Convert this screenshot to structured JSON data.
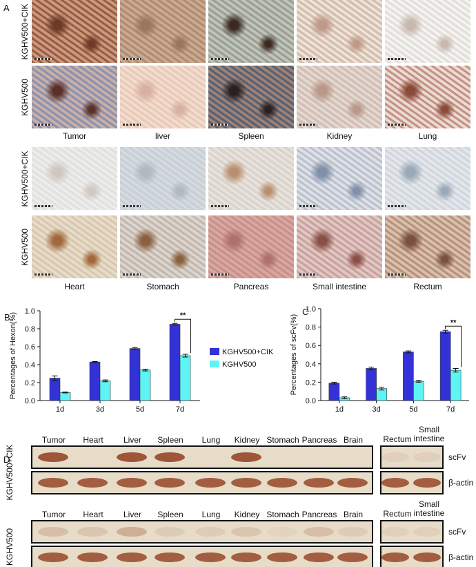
{
  "panel_labels": [
    "A",
    "B",
    "C",
    "D"
  ],
  "panel_a": {
    "groups": [
      {
        "rows": [
          "KGHV500+CIK",
          "KGHV500"
        ],
        "tissues": [
          "Tumor",
          "liver",
          "Spleen",
          "Kidney",
          "Lung"
        ]
      },
      {
        "rows": [
          "KGHV500+CIK",
          "KGHV500"
        ],
        "tissues": [
          "Heart",
          "Stomach",
          "Pancreas",
          "Small intestine",
          "Rectum"
        ]
      }
    ]
  },
  "chart_data": [
    {
      "type": "bar",
      "y_label": "Percentages of Hexon(%)",
      "categories": [
        "1d",
        "3d",
        "5d",
        "7d"
      ],
      "series": [
        {
          "name": "KGHV500+CIK",
          "color": "#3232d6",
          "values": [
            0.25,
            0.43,
            0.58,
            0.85
          ],
          "errors": [
            0.025,
            0.005,
            0.01,
            0.01
          ]
        },
        {
          "name": "KGHV500",
          "color": "#5ff4f4",
          "values": [
            0.09,
            0.22,
            0.34,
            0.5
          ],
          "errors": [
            0.005,
            0.01,
            0.01,
            0.015
          ]
        }
      ],
      "ylim": [
        0,
        1
      ],
      "yticks": [
        {
          "value": 0,
          "label": "0.0"
        },
        0.2,
        0.4,
        0.6,
        0.8,
        {
          "value": 1,
          "label": "1.0"
        }
      ],
      "annotation": "**",
      "legend": true
    },
    {
      "type": "bar",
      "y_label": "Percentages of scFv(%)",
      "categories": [
        "1d",
        "3d",
        "5d",
        "7d"
      ],
      "series": [
        {
          "color": "#3232d6",
          "values": [
            0.19,
            0.35,
            0.53,
            0.75
          ],
          "errors": [
            0.01,
            0.015,
            0.01,
            0.015
          ]
        },
        {
          "color": "#5ff4f4",
          "values": [
            0.03,
            0.13,
            0.21,
            0.33
          ],
          "errors": [
            0.01,
            0.015,
            0.01,
            0.02
          ]
        }
      ],
      "ylim": [
        0,
        1
      ],
      "yticks": [
        {
          "value": 0,
          "label": "0.0"
        },
        0.2,
        0.4,
        0.6,
        0.8,
        {
          "value": 1,
          "label": "1.0"
        }
      ],
      "annotation": "**",
      "legend": false
    }
  ],
  "panel_d": {
    "blots": [
      {
        "group": "KGHV500+CIK",
        "lanes": [
          "Tumor",
          "Heart",
          "Liver",
          "Spleen",
          "Lung",
          "Kidney",
          "Stomach",
          "Pancreas",
          "Brain"
        ],
        "extra_lanes": [
          "Rectum",
          "Small intestine"
        ],
        "bands": [
          "scFv",
          "β-actin"
        ]
      },
      {
        "group": "KGHV500",
        "lanes": [
          "Tumor",
          "Heart",
          "Liver",
          "Spleen",
          "Lung",
          "Kidney",
          "Stomach",
          "Pancreas",
          "Brain"
        ],
        "extra_lanes": [
          "Rectum",
          "Small intestine"
        ],
        "bands": [
          "scFv",
          "β-actin"
        ]
      }
    ]
  }
}
